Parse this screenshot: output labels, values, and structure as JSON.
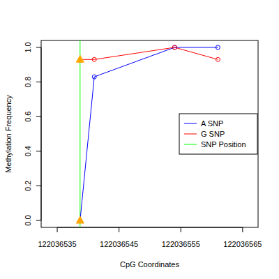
{
  "chart_data": {
    "type": "line",
    "x_label": "CpG Coordinates",
    "y_label": "Methylation Frequency",
    "xlim": [
      122036532.4,
      122036567.5
    ],
    "ylim": [
      -0.04,
      1.04
    ],
    "xticks": [
      122036535,
      122036545,
      122036555,
      122036565
    ],
    "yticks": [
      {
        "value": 0,
        "label": "0.0"
      },
      0.2,
      0.4,
      0.6,
      0.8,
      {
        "value": 1,
        "label": "1.0"
      }
    ],
    "legend": "right",
    "grid": false,
    "series": [
      {
        "name": "A SNP",
        "color": "#0000ff",
        "marker": "circle",
        "x": [
          122036538.7,
          122036541,
          122036554,
          122036561
        ],
        "values": [
          0.0,
          0.83,
          1.0,
          1.0
        ]
      },
      {
        "name": "G SNP",
        "color": "#ff0000",
        "marker": "circle",
        "x": [
          122036538.7,
          122036541,
          122036554,
          122036561
        ],
        "values": [
          0.93,
          0.93,
          1.0,
          0.93
        ]
      },
      {
        "name": "SNP Position",
        "color": "#00ff00",
        "type": "vline",
        "x": [
          122036538.7
        ]
      }
    ]
  }
}
